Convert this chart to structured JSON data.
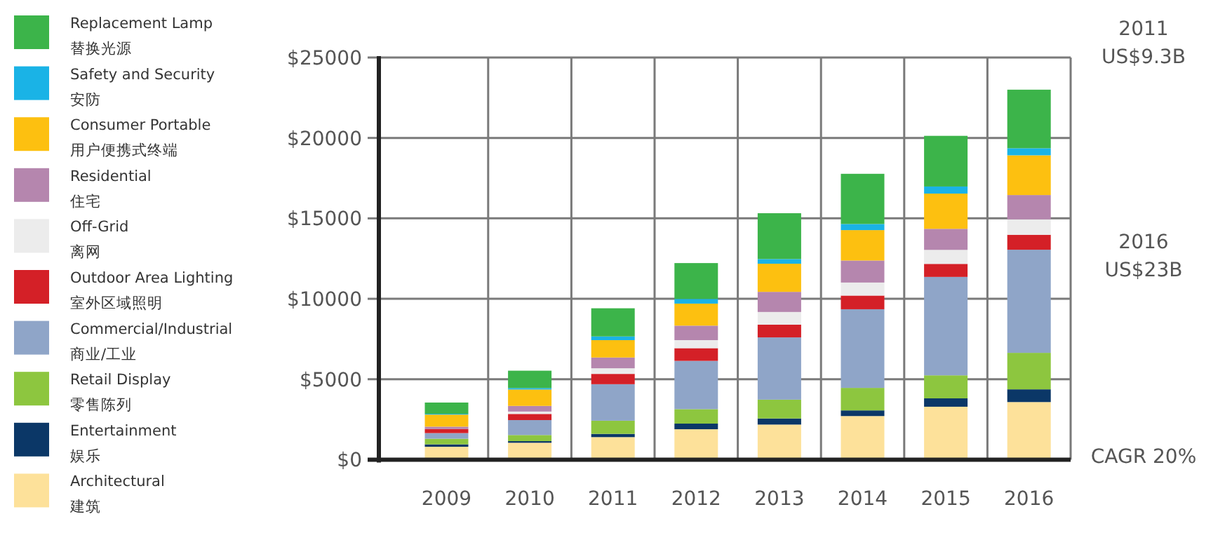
{
  "chart_data": {
    "type": "bar",
    "stacked": true,
    "categories": [
      "2009",
      "2010",
      "2011",
      "2012",
      "2013",
      "2014",
      "2015",
      "2016"
    ],
    "series": [
      {
        "name": "Architectural\n建筑",
        "color": "#fde19a",
        "values": [
          800,
          1050,
          1400,
          1890,
          2180,
          2710,
          3290,
          3580
        ]
      },
      {
        "name": "Entertainment\n娱乐",
        "color": "#0b3767",
        "values": [
          150,
          100,
          200,
          350,
          380,
          350,
          520,
          790
        ]
      },
      {
        "name": "Retail Display\n零售陈列",
        "color": "#8dc63f",
        "values": [
          350,
          380,
          820,
          900,
          1170,
          1400,
          1430,
          2270
        ]
      },
      {
        "name": "Commercial/Industrial\n商业/工业",
        "color": "#8fa5c8",
        "values": [
          350,
          930,
          2270,
          3000,
          3870,
          4890,
          6120,
          6410
        ]
      },
      {
        "name": "Outdoor Area Lighting\n室外区域照明",
        "color": "#d42027",
        "values": [
          250,
          380,
          640,
          790,
          790,
          850,
          810,
          930
        ]
      },
      {
        "name": "Off-Grid\n离网",
        "color": "#ececec",
        "values": [
          null,
          150,
          350,
          500,
          790,
          810,
          870,
          960
        ]
      },
      {
        "name": "Residential\n住宅",
        "color": "#b586ae",
        "values": [
          150,
          350,
          670,
          900,
          1250,
          1370,
          1310,
          1510
        ]
      },
      {
        "name": "Consumer Portable\n用户便携式终端",
        "color": "#fdc010",
        "values": [
          750,
          1020,
          1080,
          1370,
          1750,
          1890,
          2190,
          2470
        ]
      },
      {
        "name": "Safety and Security\n安防",
        "color": "#1ab3e6",
        "values": [
          50,
          90,
          230,
          290,
          290,
          380,
          440,
          440
        ]
      },
      {
        "name": "Replacement Lamp\n替换光源",
        "color": "#3cb44a",
        "values": [
          700,
          1080,
          1750,
          2230,
          2850,
          3120,
          3150,
          3640
        ]
      }
    ],
    "ylim": [
      0,
      25000
    ],
    "yticks": [
      {
        "value": 0,
        "label": "$0"
      },
      {
        "value": 5000,
        "label": "$5000"
      },
      {
        "value": 10000,
        "label": "$10000"
      },
      {
        "value": 15000,
        "label": "$15000"
      },
      {
        "value": 20000,
        "label": "$20000"
      },
      {
        "value": 25000,
        "label": "$25000"
      }
    ],
    "grid": true,
    "legend": "left",
    "annotations": [
      "2011\nUS$9.3B",
      "2016\nUS$23B",
      "CAGR 20%"
    ]
  }
}
